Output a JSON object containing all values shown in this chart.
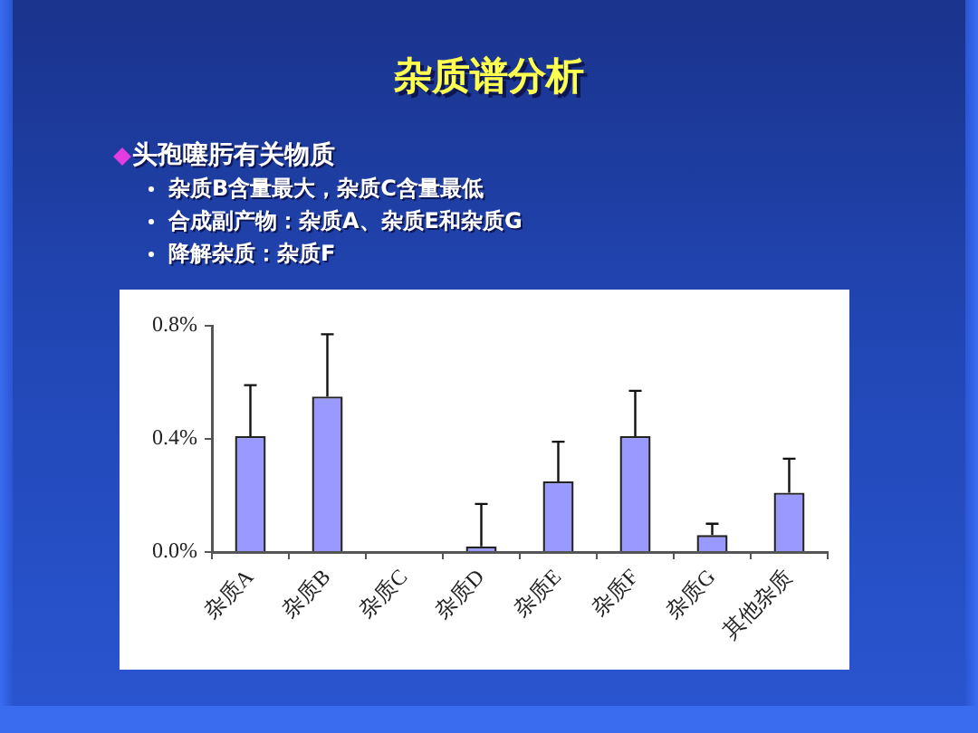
{
  "chart_data": {
    "type": "bar",
    "title": "杂质谱分析",
    "subtitle": "头孢噻肟有关物质",
    "annotations": [
      "杂质B含量最大，杂质C含量最低",
      "合成副产物：杂质A、杂质E和杂质G",
      "降解杂质：杂质F"
    ],
    "categories": [
      "杂质A",
      "杂质B",
      "杂质C",
      "杂质D",
      "杂质E",
      "杂质F",
      "杂质G",
      "其他杂质"
    ],
    "values": [
      0.41,
      0.55,
      0,
      0.02,
      0.25,
      0.41,
      0.06,
      0.21
    ],
    "errors": [
      [
        0.41,
        0.59
      ],
      [
        0.55,
        0.77
      ],
      null,
      [
        0.02,
        0.17
      ],
      [
        0.25,
        0.39
      ],
      [
        0.41,
        0.57
      ],
      [
        0.06,
        0.1
      ],
      [
        0.21,
        0.33
      ]
    ],
    "color": "#9999ff",
    "ylim": [
      0,
      0.8
    ],
    "yticks": [
      {
        "value": 0,
        "label": "0.0%"
      },
      {
        "value": 0.4,
        "label": "0.4%"
      },
      {
        "value": 0.8,
        "label": "0.8%"
      }
    ]
  }
}
